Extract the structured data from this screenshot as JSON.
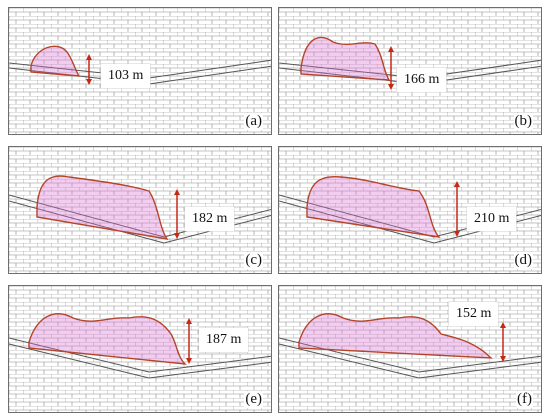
{
  "panels": [
    {
      "label": "(a)",
      "height": "103 m"
    },
    {
      "label": "(b)",
      "height": "166 m"
    },
    {
      "label": "(c)",
      "height": "182 m"
    },
    {
      "label": "(d)",
      "height": "210 m"
    },
    {
      "label": "(e)",
      "height": "187 m"
    },
    {
      "label": "(f)",
      "height": "152 m"
    }
  ],
  "colors": {
    "mesh": "#8c8c8c",
    "outline": "#b5452a",
    "fill": "#d96fd3",
    "arrow": "#c62817"
  }
}
